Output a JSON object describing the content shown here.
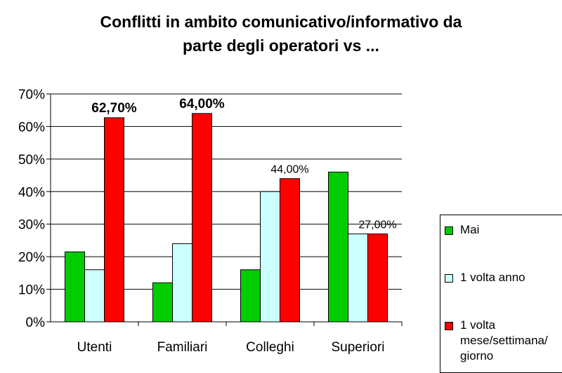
{
  "chart_data": {
    "type": "bar",
    "title_lines": [
      "Conflitti in ambito comunicativo/informativo da",
      "parte degli operatori vs ..."
    ],
    "categories": [
      "Utenti",
      "Familiari",
      "Colleghi",
      "Superiori"
    ],
    "series": [
      {
        "name": "Mai",
        "color": "#00cc00",
        "values": [
          21.5,
          12.0,
          16.0,
          46.0
        ]
      },
      {
        "name": "1 volta anno",
        "color": "#ccffff",
        "values": [
          16.0,
          24.0,
          40.0,
          27.0
        ]
      },
      {
        "name": "1 volta mese/settimana/ giorno",
        "color": "#ff0000",
        "values": [
          62.7,
          64.0,
          44.0,
          27.0
        ]
      }
    ],
    "y_ticks": [
      "0%",
      "10%",
      "20%",
      "30%",
      "40%",
      "50%",
      "60%",
      "70%"
    ],
    "ylim": [
      0,
      70
    ],
    "data_labels": [
      {
        "category": "Utenti",
        "series": 2,
        "text": "62,70%",
        "bold": true
      },
      {
        "category": "Familiari",
        "series": 2,
        "text": "64,00%",
        "bold": true
      },
      {
        "category": "Colleghi",
        "series": 2,
        "text": "44,00%",
        "bold": false
      },
      {
        "category": "Superiori",
        "series": 2,
        "text": "27,00%",
        "bold": false
      }
    ],
    "grid": true,
    "legend_position": "right"
  }
}
